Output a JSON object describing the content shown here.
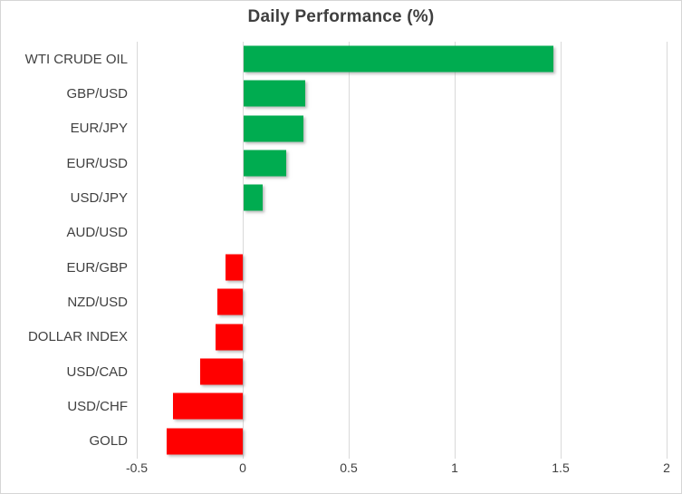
{
  "title": "Daily Performance (%)",
  "colors": {
    "background": "#FFFFFF",
    "border": "#D6D6D6",
    "text": "#404040",
    "gridline": "#D9D9D9",
    "positive_bar": "#00AC50",
    "negative_bar": "#FF0000"
  },
  "chart_data": {
    "type": "bar",
    "orientation": "horizontal",
    "title": "Daily Performance (%)",
    "categories": [
      "WTI CRUDE OIL",
      "GBP/USD",
      "EUR/JPY",
      "EUR/USD",
      "USD/JPY",
      "AUD/USD",
      "EUR/GBP",
      "NZD/USD",
      "DOLLAR INDEX",
      "USD/CAD",
      "USD/CHF",
      "GOLD"
    ],
    "values": [
      1.46,
      0.29,
      0.28,
      0.2,
      0.09,
      0.0,
      -0.08,
      -0.12,
      -0.13,
      -0.2,
      -0.33,
      -0.36
    ],
    "positive_color": "#00AC50",
    "negative_color": "#FF0000",
    "xlim": [
      -0.5,
      2
    ],
    "x_ticks": [
      -0.5,
      0,
      0.5,
      1,
      1.5,
      2
    ],
    "x_tick_labels": [
      "-0.5",
      "0",
      "0.5",
      "1",
      "1.5",
      "2"
    ],
    "grid": true,
    "legend": false,
    "xlabel": "",
    "ylabel": ""
  }
}
